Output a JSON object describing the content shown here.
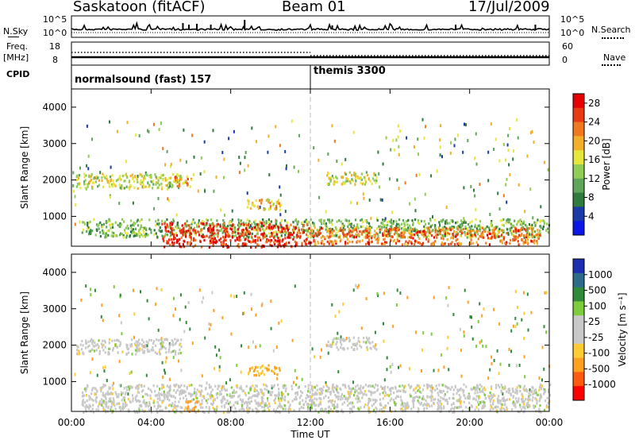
{
  "header": {
    "station": "Saskatoon (fitACF)",
    "beam": "Beam 01",
    "date": "17/Jul/2009"
  },
  "side_labels": {
    "nsky": "N.Sky",
    "nsearch": "N.Search",
    "freq": "Freq.",
    "mhz": "[MHz]",
    "nave": "Nave",
    "cpid": "CPID"
  },
  "strip_ticks": {
    "nsky_top": "10^5",
    "nsky_bottom": "10^0",
    "nsearch_top": "10^5",
    "nsearch_bottom": "10^0",
    "freq_top": "18",
    "freq_bottom": "8",
    "nave_top": "60",
    "nave_bottom": "0"
  },
  "cpid": {
    "mode1": "normalsound (fast) 157",
    "mode2": "themis 3300"
  },
  "colors": {
    "power": [
      "#0a17e6",
      "#1a3aa8",
      "#2f7a3d",
      "#5fa65a",
      "#8fcd57",
      "#e6e63c",
      "#f2b028",
      "#f0781e",
      "#ea3a14",
      "#e60000"
    ],
    "velocity": [
      "#1c2fb0",
      "#2c6b8a",
      "#2f8a3a",
      "#7ccc3c",
      "#c8c8c8",
      "#c8c8c8",
      "#ffcc33",
      "#ffa020",
      "#ff5a10",
      "#ff0000"
    ]
  },
  "chart_data": [
    {
      "type": "heatmap",
      "name": "Power",
      "xlabel": "",
      "ylabel": "Slant Range [km]",
      "xlim": [
        "00:00",
        "24:00"
      ],
      "ylim": [
        180,
        4500
      ],
      "x_ticks": [
        "00:00",
        "04:00",
        "08:00",
        "12:00",
        "16:00",
        "20:00",
        "00:00"
      ],
      "y_ticks": [
        1000,
        2000,
        3000,
        4000
      ],
      "colorbar": {
        "label": "Power [dB]",
        "ticks": [
          4,
          8,
          12,
          16,
          20,
          24,
          28
        ],
        "range": [
          0,
          30
        ]
      },
      "regions": [
        {
          "t": [
            0.2,
            5.5
          ],
          "range": [
            1780,
            2200
          ],
          "value": 16
        },
        {
          "t": [
            5.0,
            6.0
          ],
          "range": [
            1850,
            2150
          ],
          "value": 20
        },
        {
          "t": [
            8.8,
            10.5
          ],
          "range": [
            1200,
            1500
          ],
          "value": 18
        },
        {
          "t": [
            12.8,
            15.3
          ],
          "range": [
            1900,
            2250
          ],
          "value": 16
        },
        {
          "t": [
            0.5,
            24.0
          ],
          "range": [
            450,
            950
          ],
          "value": 12
        },
        {
          "t": [
            4.5,
            12.0
          ],
          "range": [
            180,
            850
          ],
          "value": 26
        },
        {
          "t": [
            12.0,
            23.5
          ],
          "range": [
            250,
            720
          ],
          "value": 23
        }
      ]
    },
    {
      "type": "heatmap",
      "name": "Velocity",
      "xlabel": "Time UT",
      "ylabel": "Slant Range [km]",
      "xlim": [
        "00:00",
        "24:00"
      ],
      "ylim": [
        180,
        4500
      ],
      "x_ticks": [
        "00:00",
        "04:00",
        "08:00",
        "12:00",
        "16:00",
        "20:00",
        "00:00"
      ],
      "y_ticks": [
        1000,
        2000,
        3000,
        4000
      ],
      "colorbar": {
        "label": "Velocity [m s^-1]",
        "ticks": [
          "1000",
          "500",
          "100",
          "25",
          "-25",
          "-100",
          "-500",
          "-1000"
        ]
      },
      "regions": [
        {
          "t": [
            0.2,
            5.5
          ],
          "range": [
            1780,
            2200
          ],
          "value": 0
        },
        {
          "t": [
            8.8,
            10.5
          ],
          "range": [
            1200,
            1500
          ],
          "value": -100
        },
        {
          "t": [
            12.8,
            15.3
          ],
          "range": [
            1900,
            2250
          ],
          "value": 0
        },
        {
          "t": [
            0.5,
            24.0
          ],
          "range": [
            180,
            950
          ],
          "value": 0
        },
        {
          "t": [
            5.7,
            6.3
          ],
          "range": [
            180,
            500
          ],
          "value": -150
        }
      ]
    }
  ]
}
